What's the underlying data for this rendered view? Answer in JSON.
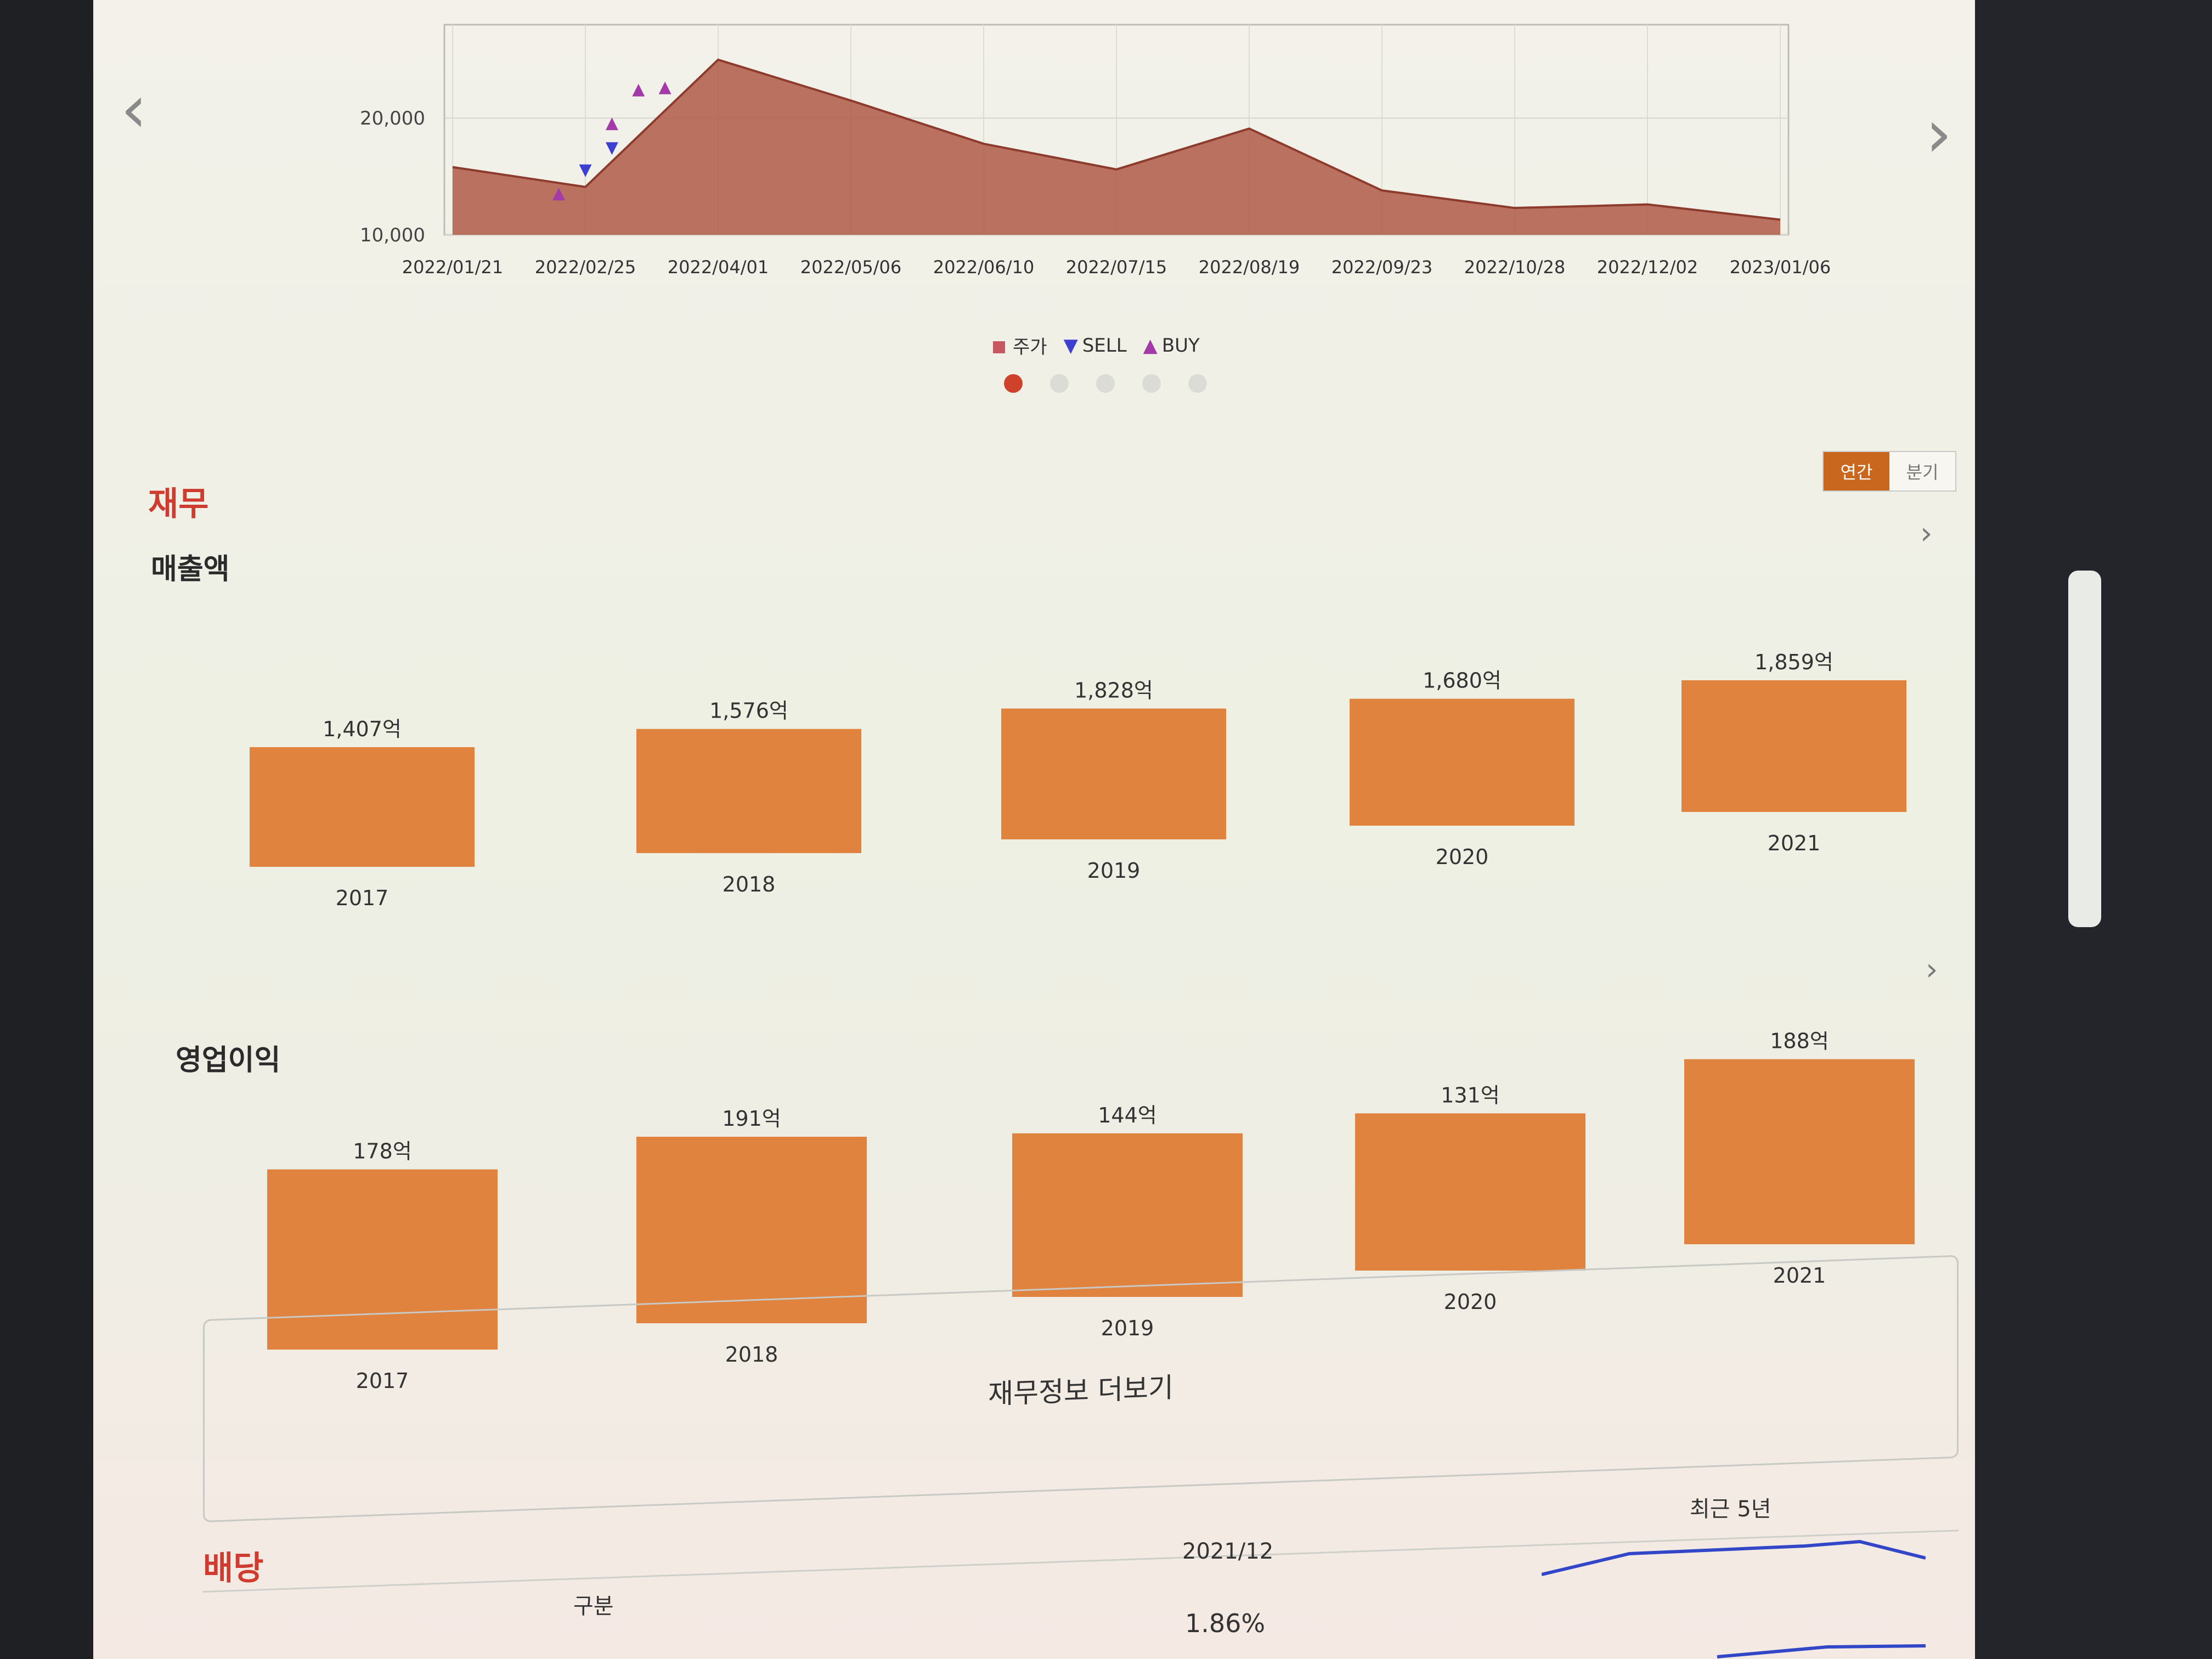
{
  "price_chart": {
    "y_ticks": [
      "10,000",
      "20,000"
    ],
    "x_ticks": [
      "2022/01/21",
      "2022/02/25",
      "2022/04/01",
      "2022/05/06",
      "2022/06/10",
      "2022/07/15",
      "2022/08/19",
      "2022/09/23",
      "2022/10/28",
      "2022/12/02",
      "2023/01/06"
    ],
    "legend": {
      "price": "주가",
      "sell": "SELL",
      "buy": "BUY"
    },
    "colors": {
      "area": "#b05a48",
      "sell": "#3d3fd0",
      "buy": "#a23aa8"
    },
    "page_count": 5,
    "active_page": 1
  },
  "finance": {
    "title": "재무",
    "period_toggle": {
      "annual": "연간",
      "quarterly": "분기",
      "selected": "연간"
    },
    "more_label": "재무정보 더보기"
  },
  "dividend": {
    "title": "배당",
    "header": {
      "category": "구분",
      "period": "2021/12",
      "trend": "최근 5년"
    },
    "yield_value": "1.86%"
  },
  "chart_data": [
    {
      "type": "area",
      "title": "",
      "xlabel": "",
      "ylabel": "",
      "x": [
        "2022/01/21",
        "2022/02/25",
        "2022/04/01",
        "2022/05/06",
        "2022/06/10",
        "2022/07/15",
        "2022/08/19",
        "2022/09/23",
        "2022/10/28",
        "2022/12/02",
        "2023/01/06"
      ],
      "series": [
        {
          "name": "주가",
          "values": [
            15800,
            14100,
            25000,
            21500,
            17800,
            15600,
            19100,
            13800,
            12300,
            12600,
            11300
          ]
        }
      ],
      "markers": [
        {
          "name": "SELL",
          "x": [
            "2022/02/25",
            "2022/03/04"
          ],
          "y": [
            15600,
            17500
          ]
        },
        {
          "name": "BUY",
          "x": [
            "2022/02/18",
            "2022/03/04",
            "2022/03/11",
            "2022/03/18"
          ],
          "y": [
            13600,
            19600,
            22500,
            22700
          ]
        }
      ],
      "ylim": [
        10000,
        28000
      ],
      "grid": true
    },
    {
      "type": "bar",
      "title": "매출액",
      "categories": [
        "2017",
        "2018",
        "2019",
        "2020",
        "2021"
      ],
      "values": [
        1407,
        1576,
        1828,
        1680,
        1859
      ],
      "labels": [
        "1,407억",
        "1,576억",
        "1,828억",
        "1,680억",
        "1,859억"
      ],
      "color": "#e0833f"
    },
    {
      "type": "bar",
      "title": "영업이익",
      "categories": [
        "2017",
        "2018",
        "2019",
        "2020",
        "2021"
      ],
      "values": [
        178,
        191,
        144,
        131,
        188
      ],
      "labels": [
        "178억",
        "191억",
        "144억",
        "131억",
        "188억"
      ],
      "color": "#e0833f"
    }
  ]
}
